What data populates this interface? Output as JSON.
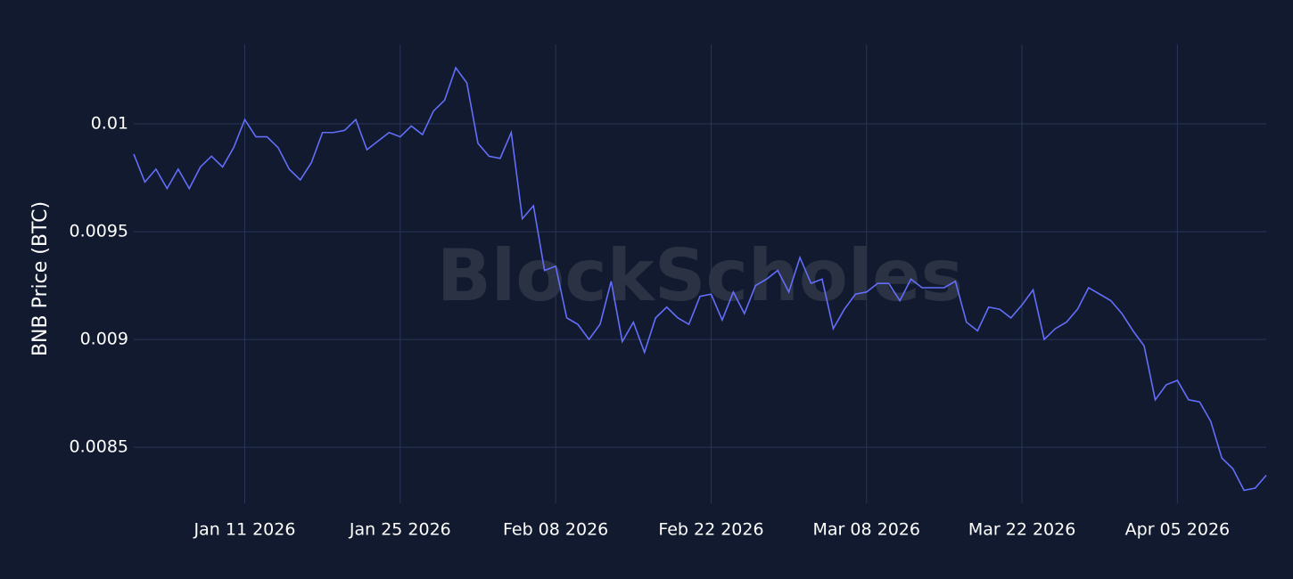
{
  "chart_data": {
    "type": "line",
    "ylabel": "BNB Price (BTC)",
    "watermark": "BlockScholes",
    "color": "#636efa",
    "grid": true,
    "x": [
      "2026-01-01",
      "2026-01-02",
      "2026-01-03",
      "2026-01-04",
      "2026-01-05",
      "2026-01-06",
      "2026-01-07",
      "2026-01-08",
      "2026-01-09",
      "2026-01-10",
      "2026-01-11",
      "2026-01-12",
      "2026-01-13",
      "2026-01-14",
      "2026-01-15",
      "2026-01-16",
      "2026-01-17",
      "2026-01-18",
      "2026-01-19",
      "2026-01-20",
      "2026-01-21",
      "2026-01-22",
      "2026-01-23",
      "2026-01-24",
      "2026-01-25",
      "2026-01-26",
      "2026-01-27",
      "2026-01-28",
      "2026-01-29",
      "2026-01-30",
      "2026-01-31",
      "2026-02-01",
      "2026-02-02",
      "2026-02-03",
      "2026-02-04",
      "2026-02-05",
      "2026-02-06",
      "2026-02-07",
      "2026-02-08",
      "2026-02-09",
      "2026-02-10",
      "2026-02-11",
      "2026-02-12",
      "2026-02-13",
      "2026-02-14",
      "2026-02-15",
      "2026-02-16",
      "2026-02-17",
      "2026-02-18",
      "2026-02-19",
      "2026-02-20",
      "2026-02-21",
      "2026-02-22",
      "2026-02-23",
      "2026-02-24",
      "2026-02-25",
      "2026-02-26",
      "2026-02-27",
      "2026-02-28",
      "2026-03-01",
      "2026-03-02",
      "2026-03-03",
      "2026-03-04",
      "2026-03-05",
      "2026-03-06",
      "2026-03-07",
      "2026-03-08",
      "2026-03-09",
      "2026-03-10",
      "2026-03-11",
      "2026-03-12",
      "2026-03-13",
      "2026-03-14",
      "2026-03-15",
      "2026-03-16",
      "2026-03-17",
      "2026-03-18",
      "2026-03-19",
      "2026-03-20",
      "2026-03-21",
      "2026-03-22",
      "2026-03-23",
      "2026-03-24",
      "2026-03-25",
      "2026-03-26",
      "2026-03-27",
      "2026-03-28",
      "2026-03-29",
      "2026-03-30",
      "2026-03-31",
      "2026-04-01",
      "2026-04-02",
      "2026-04-03",
      "2026-04-04",
      "2026-04-05",
      "2026-04-06",
      "2026-04-07",
      "2026-04-08",
      "2026-04-09",
      "2026-04-10",
      "2026-04-11",
      "2026-04-12",
      "2026-04-13"
    ],
    "values": [
      0.00986,
      0.00973,
      0.00979,
      0.0097,
      0.00979,
      0.0097,
      0.0098,
      0.00985,
      0.0098,
      0.00989,
      0.01002,
      0.00994,
      0.00994,
      0.00989,
      0.00979,
      0.00974,
      0.00982,
      0.00996,
      0.00996,
      0.00997,
      0.01002,
      0.00988,
      0.00992,
      0.00996,
      0.00994,
      0.00999,
      0.00995,
      0.01006,
      0.01011,
      0.01026,
      0.01019,
      0.00991,
      0.00985,
      0.00984,
      0.00996,
      0.00956,
      0.00962,
      0.00932,
      0.00934,
      0.0091,
      0.00907,
      0.009,
      0.00907,
      0.00927,
      0.00899,
      0.00908,
      0.00894,
      0.0091,
      0.00915,
      0.0091,
      0.00907,
      0.0092,
      0.00921,
      0.00909,
      0.00922,
      0.00912,
      0.00925,
      0.00928,
      0.00932,
      0.00922,
      0.00938,
      0.00926,
      0.00928,
      0.00905,
      0.00914,
      0.00921,
      0.00922,
      0.00926,
      0.00926,
      0.00918,
      0.00928,
      0.00924,
      0.00924,
      0.00924,
      0.00927,
      0.00908,
      0.00904,
      0.00915,
      0.00914,
      0.0091,
      0.00916,
      0.00923,
      0.009,
      0.00905,
      0.00908,
      0.00914,
      0.00924,
      0.00921,
      0.00918,
      0.00912,
      0.00904,
      0.00897,
      0.00872,
      0.00879,
      0.00881,
      0.00872,
      0.00871,
      0.00862,
      0.00845,
      0.0084,
      0.0083,
      0.00831,
      0.00837
    ],
    "xlim": [
      "2026-01-01",
      "2026-04-13"
    ],
    "xticks": [
      {
        "value": "2026-01-11",
        "label": "Jan 11 2026"
      },
      {
        "value": "2026-01-25",
        "label": "Jan 25 2026"
      },
      {
        "value": "2026-02-08",
        "label": "Feb 08 2026"
      },
      {
        "value": "2026-02-22",
        "label": "Feb 22 2026"
      },
      {
        "value": "2026-03-08",
        "label": "Mar 08 2026"
      },
      {
        "value": "2026-03-22",
        "label": "Mar 22 2026"
      },
      {
        "value": "2026-04-05",
        "label": "Apr 05 2026"
      }
    ],
    "ylim": [
      0.00824,
      0.010368
    ],
    "yticks": [
      0.0085,
      0.009,
      0.0095,
      0.01
    ]
  }
}
